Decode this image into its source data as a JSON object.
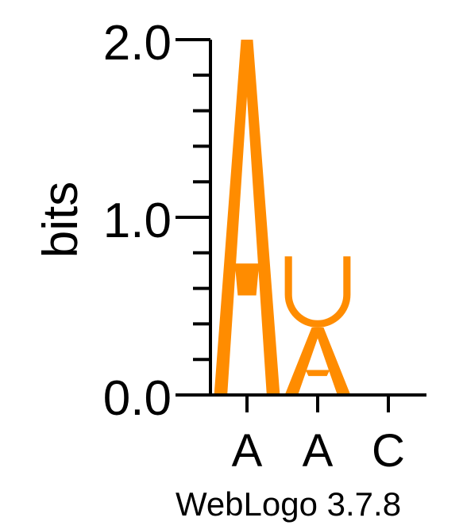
{
  "chart_data": {
    "type": "sequence-logo",
    "ylabel": "bits",
    "ylim": [
      0,
      2.0
    ],
    "yticks": [
      "0.0",
      "1.0",
      "2.0"
    ],
    "positions": [
      "A",
      "A",
      "C"
    ],
    "stacks": [
      {
        "letters": [
          {
            "letter": "A",
            "bits": 2.0
          }
        ]
      },
      {
        "letters": [
          {
            "letter": "U",
            "bits": 0.4
          },
          {
            "letter": "A",
            "bits": 0.38
          }
        ]
      },
      {
        "letters": []
      }
    ],
    "letter_color": "#FF8C00"
  },
  "credit": "WebLogo 3.7.8"
}
